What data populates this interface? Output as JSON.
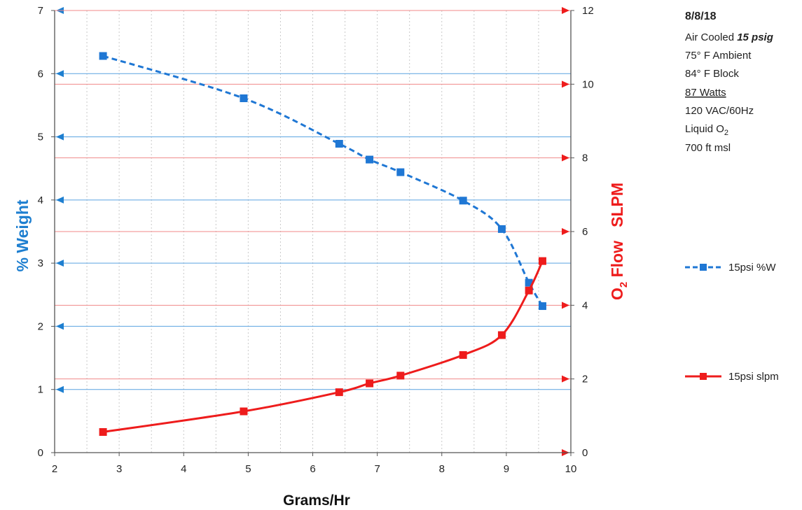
{
  "chart_data": {
    "type": "line",
    "xlabel": "Grams/Hr",
    "xlim": [
      2,
      10
    ],
    "xticks": [
      "2",
      "3",
      "4",
      "5",
      "6",
      "7",
      "8",
      "9",
      "10"
    ],
    "ylabel_left": "% Weight",
    "ylim_left": [
      0,
      7
    ],
    "yticks_left": [
      "0",
      "1",
      "2",
      "3",
      "4",
      "5",
      "6",
      "7"
    ],
    "ylabel_right_prefix": "O",
    "ylabel_right_sub": "2",
    "ylabel_right_suffix": " Flow   SLPM",
    "ylim_right": [
      0,
      12
    ],
    "yticks_right": [
      "0",
      "2",
      "4",
      "6",
      "8",
      "10",
      "12"
    ],
    "grid": true,
    "legend_position": "right",
    "colors": {
      "left_axis": "#1e7fd0",
      "right_axis": "#ee1c1c",
      "series_w": "#1f77d4",
      "series_slpm": "#ee1c1c"
    },
    "series": [
      {
        "name": "15psi %W",
        "axis": "left",
        "style": "dashed-square",
        "x": [
          2.75,
          4.93,
          6.41,
          6.88,
          7.36,
          8.33,
          8.93,
          9.35,
          9.56
        ],
        "y": [
          6.28,
          5.61,
          4.89,
          4.64,
          4.44,
          3.99,
          3.54,
          2.69,
          2.32
        ]
      },
      {
        "name": "15psi slpm",
        "axis": "right",
        "style": "solid-square",
        "x": [
          2.75,
          4.93,
          6.41,
          6.88,
          7.36,
          8.33,
          8.93,
          9.35,
          9.56
        ],
        "y": [
          0.56,
          1.12,
          1.64,
          1.88,
          2.09,
          2.65,
          3.19,
          4.4,
          5.2
        ]
      }
    ]
  },
  "notes": {
    "date": "8/8/18",
    "line1_prefix": "Air Cooled ",
    "line1_bold": "15 psig",
    "line2": "75° F Ambient",
    "line3": "84° F Block",
    "line4": "87 Watts",
    "line5": "120 VAC/60Hz",
    "line6_prefix": "Liquid O",
    "line6_sub": "2",
    "line7": "700 ft msl"
  }
}
